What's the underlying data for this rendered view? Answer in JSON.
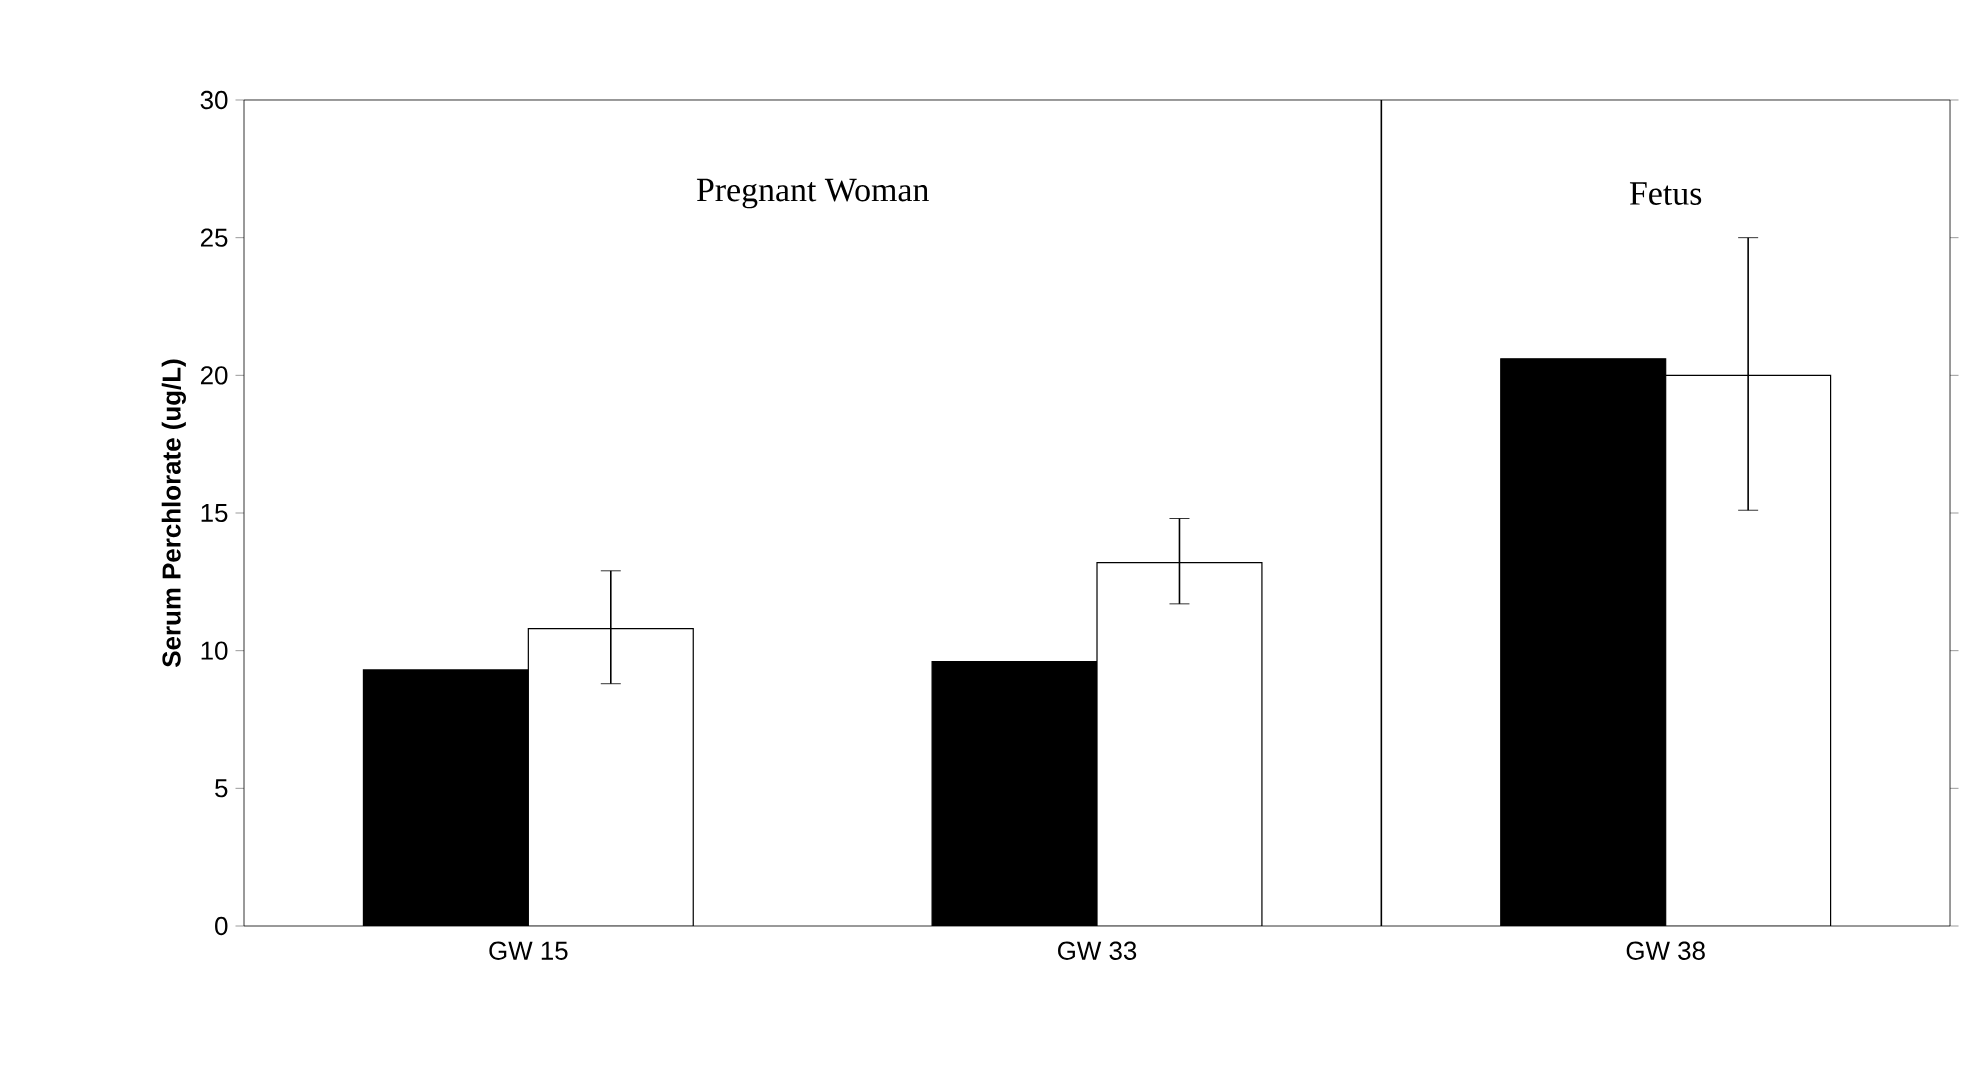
{
  "chart_data": {
    "type": "bar",
    "ylabel": "Serum Perchlorate (ug/L)",
    "categories": [
      "GW 15",
      "GW 33",
      "GW 38"
    ],
    "series": [
      {
        "color": "#000000",
        "values": [
          9.3,
          9.6,
          20.6
        ]
      },
      {
        "color": "#ffffff",
        "values": [
          10.8,
          13.2,
          20.0
        ],
        "errors": [
          [
            8.8,
            12.9
          ],
          [
            11.7,
            14.8
          ],
          [
            15.1,
            25.0
          ]
        ]
      }
    ],
    "ylim": [
      0,
      30
    ],
    "yticks": [
      0,
      5,
      10,
      15,
      20,
      25,
      30
    ],
    "grid": false,
    "annotations": [
      "Pregnant Woman",
      "Fetus"
    ]
  }
}
